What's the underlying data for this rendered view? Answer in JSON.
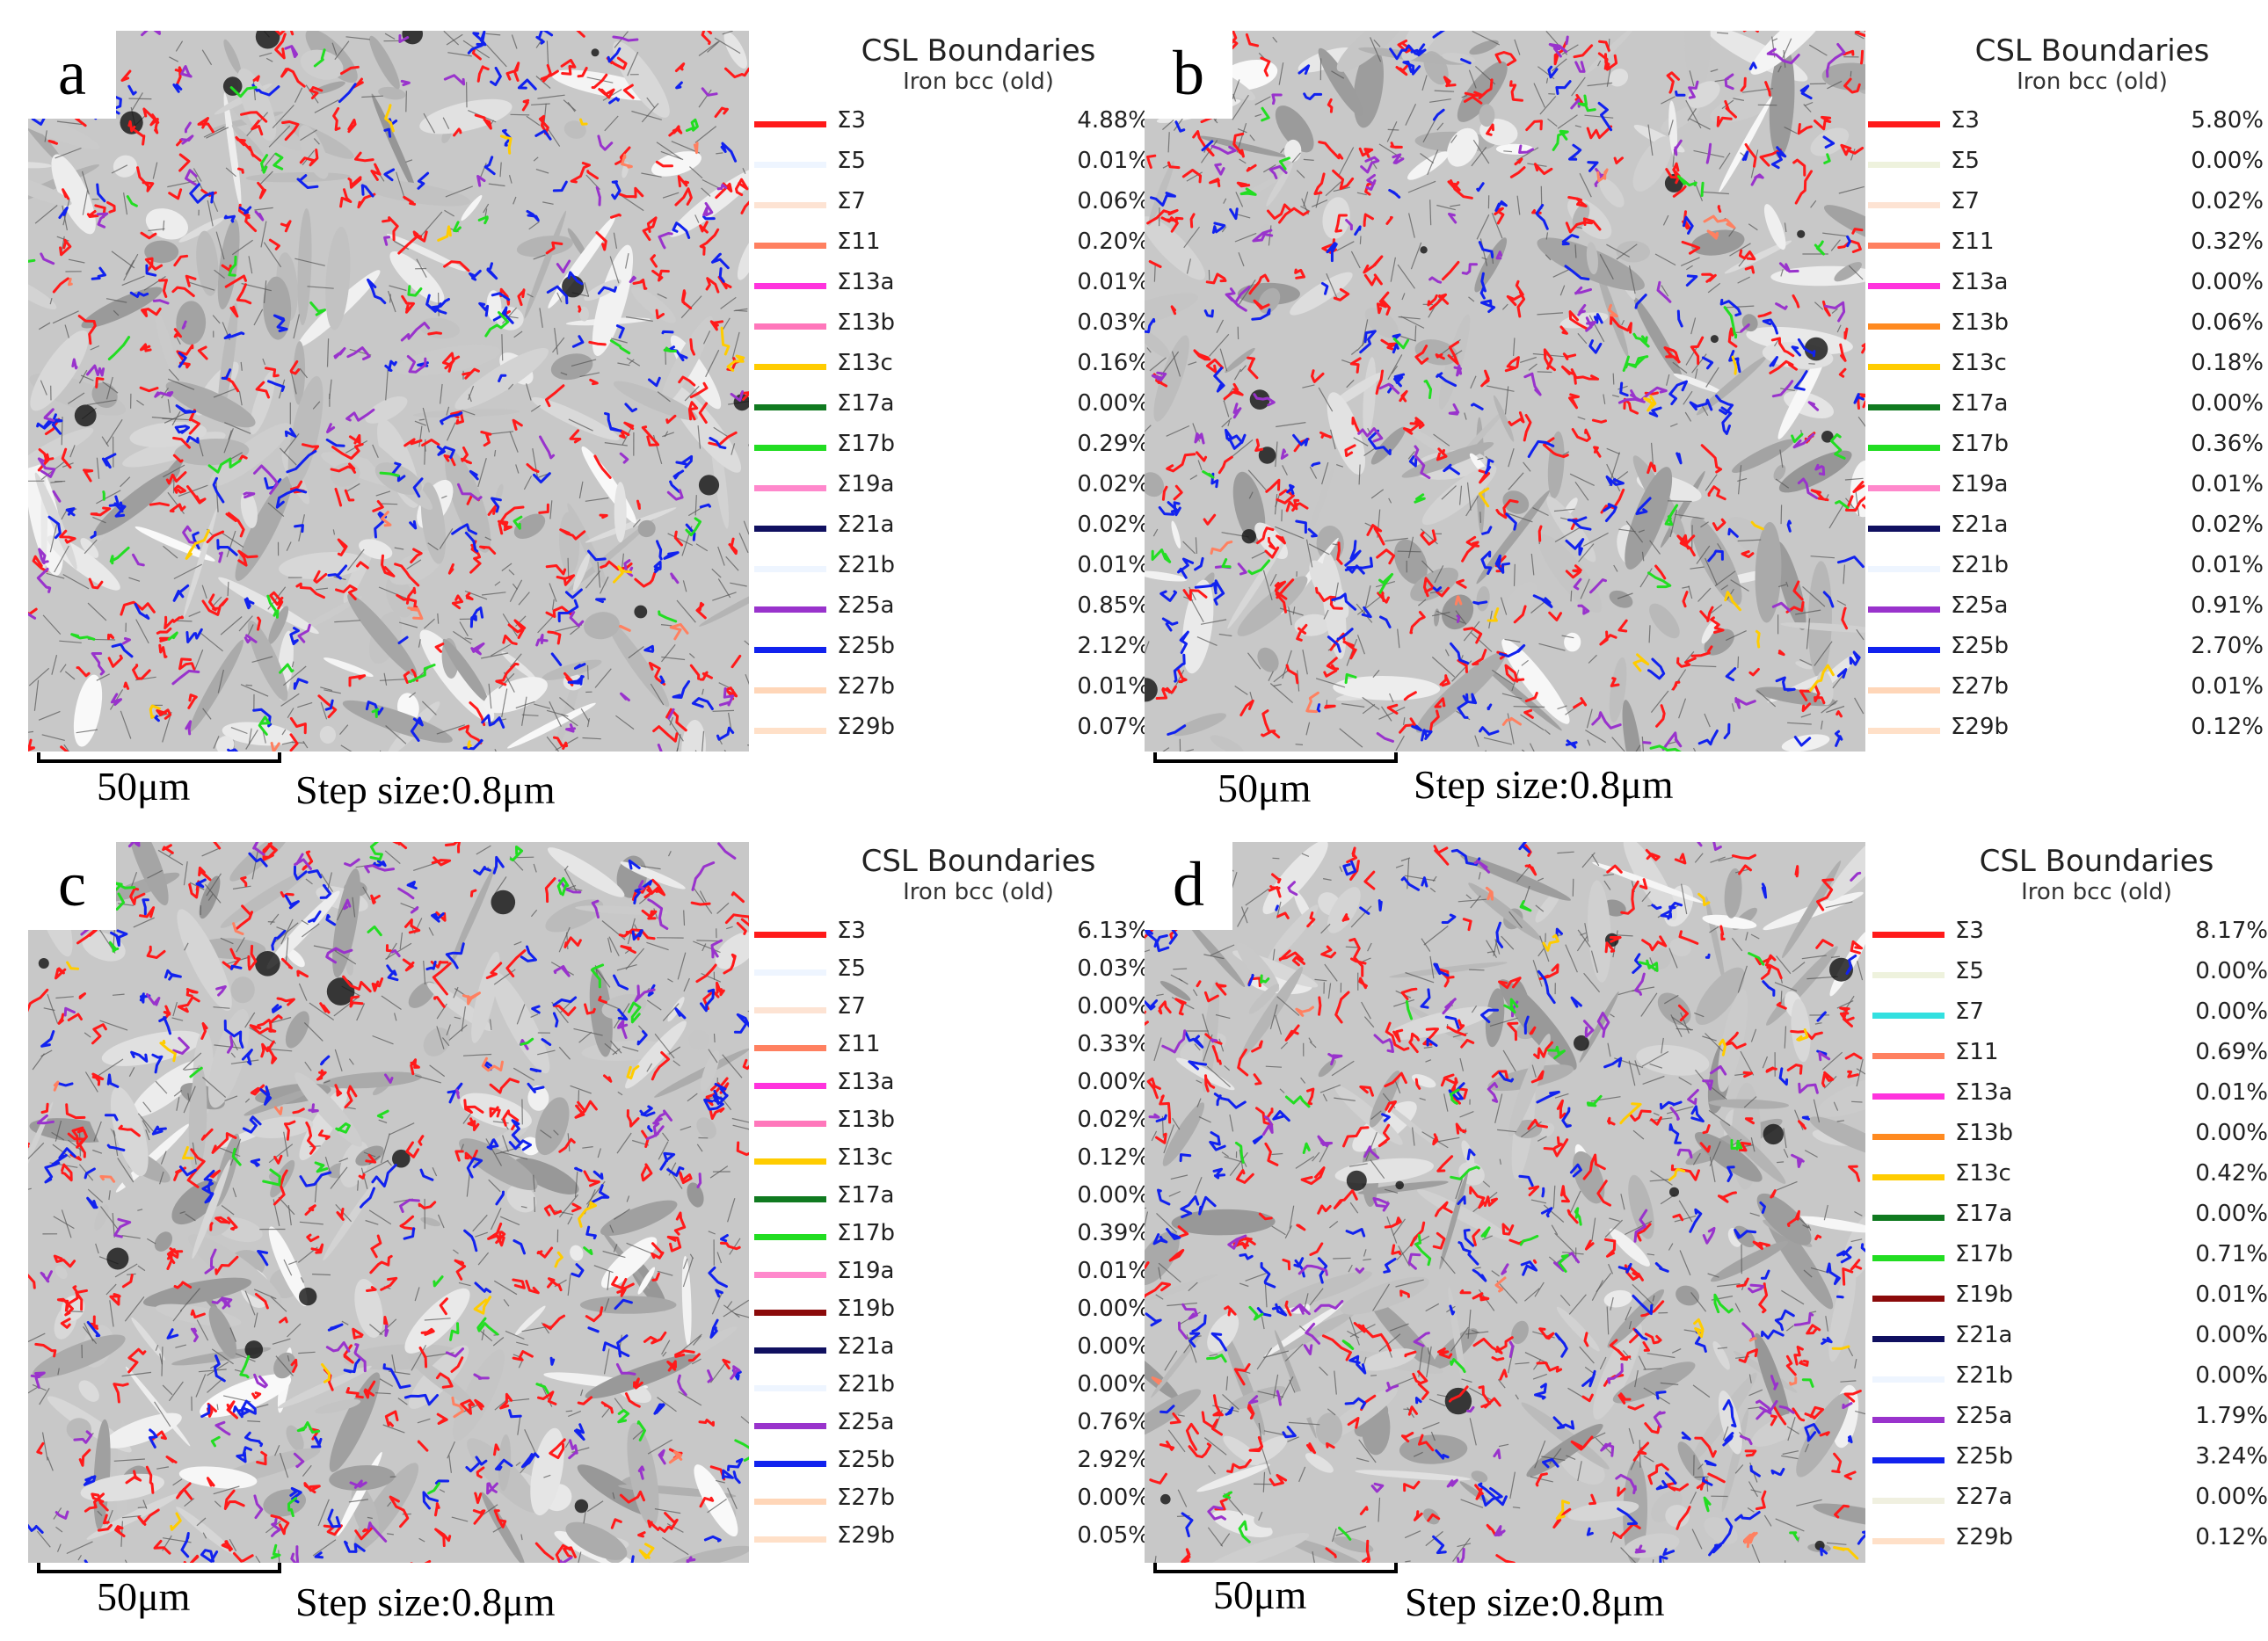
{
  "panels": [
    {
      "label": "a",
      "legend_title": "CSL Boundaries",
      "legend_subtitle": "Iron bcc (old)",
      "scale_label": "50μm",
      "step_size": "Step size:0.8μm",
      "entries": [
        {
          "name": "Σ3",
          "pct": "4.88%",
          "color": "#ff1a1a"
        },
        {
          "name": "Σ5",
          "pct": "0.01%",
          "color": "#eef5ff"
        },
        {
          "name": "Σ7",
          "pct": "0.06%",
          "color": "#fde3d3"
        },
        {
          "name": "Σ11",
          "pct": "0.20%",
          "color": "#ff8060"
        },
        {
          "name": "Σ13a",
          "pct": "0.01%",
          "color": "#ff33dd"
        },
        {
          "name": "Σ13b",
          "pct": "0.03%",
          "color": "#ff77bb"
        },
        {
          "name": "Σ13c",
          "pct": "0.16%",
          "color": "#ffcc00"
        },
        {
          "name": "Σ17a",
          "pct": "0.00%",
          "color": "#107a20"
        },
        {
          "name": "Σ17b",
          "pct": "0.29%",
          "color": "#22dd22"
        },
        {
          "name": "Σ19a",
          "pct": "0.02%",
          "color": "#ff88cc"
        },
        {
          "name": "Σ21a",
          "pct": "0.02%",
          "color": "#101060"
        },
        {
          "name": "Σ21b",
          "pct": "0.01%",
          "color": "#eef5ff"
        },
        {
          "name": "Σ25a",
          "pct": "0.85%",
          "color": "#9933cc"
        },
        {
          "name": "Σ25b",
          "pct": "2.12%",
          "color": "#1122ee"
        },
        {
          "name": "Σ27b",
          "pct": "0.01%",
          "color": "#ffd6b8"
        },
        {
          "name": "Σ29b",
          "pct": "0.07%",
          "color": "#ffe0c8"
        }
      ]
    },
    {
      "label": "b",
      "legend_title": "CSL Boundaries",
      "legend_subtitle": "Iron bcc (old)",
      "scale_label": "50μm",
      "step_size": "Step size:0.8μm",
      "entries": [
        {
          "name": "Σ3",
          "pct": "5.80%",
          "color": "#ff1a1a"
        },
        {
          "name": "Σ5",
          "pct": "0.00%",
          "color": "#eef2dd"
        },
        {
          "name": "Σ7",
          "pct": "0.02%",
          "color": "#fde3d3"
        },
        {
          "name": "Σ11",
          "pct": "0.32%",
          "color": "#ff8060"
        },
        {
          "name": "Σ13a",
          "pct": "0.00%",
          "color": "#ff33dd"
        },
        {
          "name": "Σ13b",
          "pct": "0.06%",
          "color": "#ff8a20"
        },
        {
          "name": "Σ13c",
          "pct": "0.18%",
          "color": "#ffcc00"
        },
        {
          "name": "Σ17a",
          "pct": "0.00%",
          "color": "#107a20"
        },
        {
          "name": "Σ17b",
          "pct": "0.36%",
          "color": "#22dd22"
        },
        {
          "name": "Σ19a",
          "pct": "0.01%",
          "color": "#ff88cc"
        },
        {
          "name": "Σ21a",
          "pct": "0.02%",
          "color": "#101060"
        },
        {
          "name": "Σ21b",
          "pct": "0.01%",
          "color": "#eef5ff"
        },
        {
          "name": "Σ25a",
          "pct": "0.91%",
          "color": "#9933cc"
        },
        {
          "name": "Σ25b",
          "pct": "2.70%",
          "color": "#1122ee"
        },
        {
          "name": "Σ27b",
          "pct": "0.01%",
          "color": "#ffd6b8"
        },
        {
          "name": "Σ29b",
          "pct": "0.12%",
          "color": "#ffe0c8"
        }
      ]
    },
    {
      "label": "c",
      "legend_title": "CSL Boundaries",
      "legend_subtitle": "Iron bcc (old)",
      "scale_label": "50μm",
      "step_size": "Step size:0.8μm",
      "entries": [
        {
          "name": "Σ3",
          "pct": "6.13%",
          "color": "#ff1a1a"
        },
        {
          "name": "Σ5",
          "pct": "0.03%",
          "color": "#eef5ff"
        },
        {
          "name": "Σ7",
          "pct": "0.00%",
          "color": "#fde3d3"
        },
        {
          "name": "Σ11",
          "pct": "0.33%",
          "color": "#ff8060"
        },
        {
          "name": "Σ13a",
          "pct": "0.00%",
          "color": "#ff33dd"
        },
        {
          "name": "Σ13b",
          "pct": "0.02%",
          "color": "#ff77bb"
        },
        {
          "name": "Σ13c",
          "pct": "0.12%",
          "color": "#ffcc00"
        },
        {
          "name": "Σ17a",
          "pct": "0.00%",
          "color": "#107a20"
        },
        {
          "name": "Σ17b",
          "pct": "0.39%",
          "color": "#22dd22"
        },
        {
          "name": "Σ19a",
          "pct": "0.01%",
          "color": "#ff88cc"
        },
        {
          "name": "Σ19b",
          "pct": "0.00%",
          "color": "#8b0a0a"
        },
        {
          "name": "Σ21a",
          "pct": "0.00%",
          "color": "#101060"
        },
        {
          "name": "Σ21b",
          "pct": "0.00%",
          "color": "#eef5ff"
        },
        {
          "name": "Σ25a",
          "pct": "0.76%",
          "color": "#9933cc"
        },
        {
          "name": "Σ25b",
          "pct": "2.92%",
          "color": "#1122ee"
        },
        {
          "name": "Σ27b",
          "pct": "0.00%",
          "color": "#ffd6b8"
        },
        {
          "name": "Σ29b",
          "pct": "0.05%",
          "color": "#ffe0c8"
        }
      ]
    },
    {
      "label": "d",
      "legend_title": "CSL Boundaries",
      "legend_subtitle": "Iron bcc (old)",
      "scale_label": "50μm",
      "step_size": "Step size:0.8μm",
      "entries": [
        {
          "name": "Σ3",
          "pct": "8.17%",
          "color": "#ff1a1a"
        },
        {
          "name": "Σ5",
          "pct": "0.00%",
          "color": "#eef2dd"
        },
        {
          "name": "Σ7",
          "pct": "0.00%",
          "color": "#33e0e0"
        },
        {
          "name": "Σ11",
          "pct": "0.69%",
          "color": "#ff8060"
        },
        {
          "name": "Σ13a",
          "pct": "0.01%",
          "color": "#ff33dd"
        },
        {
          "name": "Σ13b",
          "pct": "0.00%",
          "color": "#ff8a20"
        },
        {
          "name": "Σ13c",
          "pct": "0.42%",
          "color": "#ffcc00"
        },
        {
          "name": "Σ17a",
          "pct": "0.00%",
          "color": "#107a20"
        },
        {
          "name": "Σ17b",
          "pct": "0.71%",
          "color": "#22dd22"
        },
        {
          "name": "Σ19b",
          "pct": "0.01%",
          "color": "#8b0a0a"
        },
        {
          "name": "Σ21a",
          "pct": "0.00%",
          "color": "#101060"
        },
        {
          "name": "Σ21b",
          "pct": "0.00%",
          "color": "#eef5ff"
        },
        {
          "name": "Σ25a",
          "pct": "1.79%",
          "color": "#9933cc"
        },
        {
          "name": "Σ25b",
          "pct": "3.24%",
          "color": "#1122ee"
        },
        {
          "name": "Σ27a",
          "pct": "0.00%",
          "color": "#f0f0e0"
        },
        {
          "name": "Σ29b",
          "pct": "0.12%",
          "color": "#ffe0c8"
        }
      ]
    }
  ]
}
